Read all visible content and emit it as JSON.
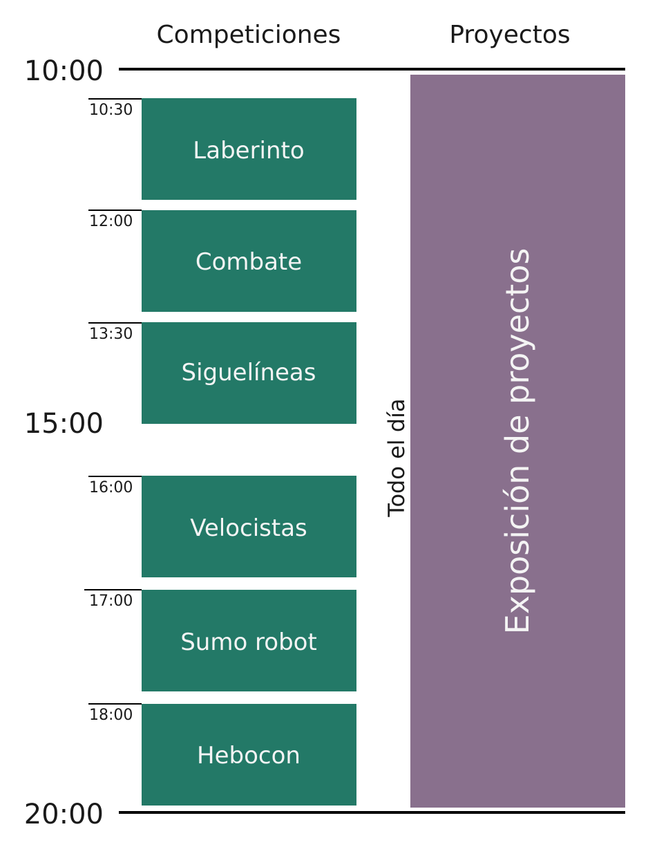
{
  "columns": {
    "competitions": "Competiciones",
    "projects": "Proyectos"
  },
  "hour_marks": [
    "10:00",
    "15:00",
    "20:00"
  ],
  "competitions": [
    {
      "time": "10:30",
      "name": "Laberinto"
    },
    {
      "time": "12:00",
      "name": "Combate"
    },
    {
      "time": "13:30",
      "name": "Siguelíneas"
    },
    {
      "time": "16:00",
      "name": "Velocistas"
    },
    {
      "time": "17:00",
      "name": "Sumo robot"
    },
    {
      "time": "18:00",
      "name": "Hebocon"
    }
  ],
  "projects": {
    "duration_label": "Todo el día",
    "name": "Exposición de proyectos"
  },
  "colors": {
    "competition": "#237967",
    "project": "#89708D",
    "line": "#000000"
  }
}
